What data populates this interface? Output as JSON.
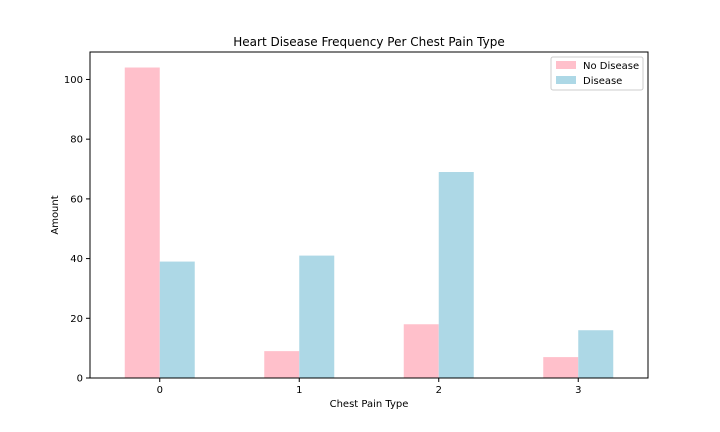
{
  "chart_data": {
    "type": "bar",
    "title": "Heart Disease Frequency Per Chest Pain Type",
    "xlabel": "Chest Pain Type",
    "ylabel": "Amount",
    "categories": [
      "0",
      "1",
      "2",
      "3"
    ],
    "series": [
      {
        "name": "No Disease",
        "color": "#ffc0cb",
        "values": [
          104,
          9,
          18,
          7
        ]
      },
      {
        "name": "Disease",
        "color": "#add8e6",
        "values": [
          39,
          41,
          69,
          16
        ]
      }
    ],
    "ylim": [
      0,
      109.2
    ],
    "yticks": [
      0,
      20,
      40,
      60,
      80,
      100
    ],
    "grid": false,
    "legend_position": "top-right"
  }
}
